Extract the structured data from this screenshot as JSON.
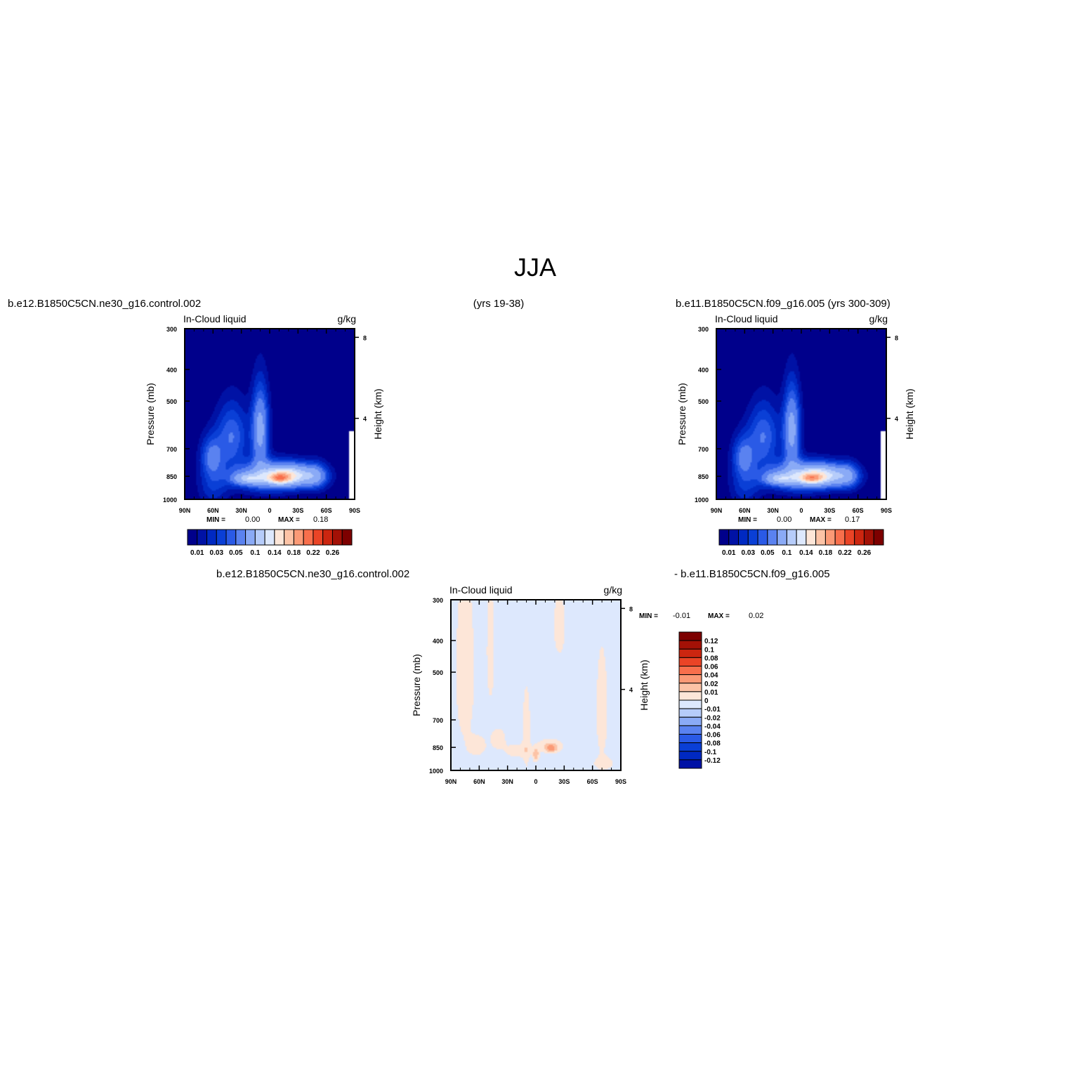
{
  "page": {
    "title": "JJA",
    "top_left_caption": "b.e12.B1850C5CN.ne30_g16.control.002",
    "top_center_caption": "(yrs 19-38)",
    "top_right_caption": "b.e11.B1850C5CN.f09_g16.005 (yrs 300-309)",
    "bottom_left_caption": "b.e12.B1850C5CN.ne30_g16.control.002",
    "bottom_right_caption": "- b.e11.B1850C5CN.f09_g16.005"
  },
  "chart_data": [
    {
      "type": "heatmap",
      "id": "panel_a",
      "variable_label": "In-Cloud liquid",
      "units": "g/kg",
      "ylabel": "Pressure (mb)",
      "y2label": "Height (km)",
      "x_ticks": [
        "90N",
        "60N",
        "30N",
        "0",
        "30S",
        "60S",
        "90S"
      ],
      "xlim": [
        90,
        -90
      ],
      "y_ticks": [
        300,
        400,
        500,
        700,
        850,
        1000
      ],
      "ylim": [
        300,
        1000
      ],
      "y_scale": "log",
      "y2_ticks": [
        8,
        4
      ],
      "min_text": "MIN =",
      "min_value": "0.00",
      "max_text": "MAX =",
      "max_value": "0.18",
      "colorbar": {
        "orientation": "horizontal",
        "colors": [
          "#00008b",
          "#0012a5",
          "#0029c2",
          "#0a3fd6",
          "#2a5ae6",
          "#5a82f0",
          "#8aaaf6",
          "#b6ccfa",
          "#dde8fd",
          "#fde6d8",
          "#fcc3a6",
          "#fb9a76",
          "#f86f4c",
          "#ea4426",
          "#cc2610",
          "#a31106",
          "#7d0000"
        ],
        "labels": [
          "0.01",
          "0.03",
          "0.05",
          "0.1",
          "0.14",
          "0.18",
          "0.22",
          "0.26"
        ]
      },
      "field": {
        "background_level": 0,
        "blobs": [
          {
            "lat": 40,
            "p": 640,
            "slat": 17,
            "sp": 150,
            "v": 0.05
          },
          {
            "lat": 62,
            "p": 740,
            "slat": 12,
            "sp": 110,
            "v": 0.05
          },
          {
            "lat": 10,
            "p": 610,
            "slat": 9,
            "sp": 175,
            "v": 0.08
          },
          {
            "lat": 2,
            "p": 850,
            "slat": 40,
            "sp": 90,
            "v": 0.07
          },
          {
            "lat": -22,
            "p": 845,
            "slat": 28,
            "sp": 65,
            "v": 0.1
          },
          {
            "lat": -10,
            "p": 862,
            "slat": 11,
            "sp": 30,
            "v": 0.07
          },
          {
            "lat": 25,
            "p": 865,
            "slat": 14,
            "sp": 35,
            "v": 0.06
          },
          {
            "lat": 60,
            "p": 930,
            "slat": 16,
            "sp": 120,
            "v": 0.025
          },
          {
            "lat": -50,
            "p": 850,
            "slat": 12,
            "sp": 80,
            "v": 0.04
          }
        ],
        "missing": [
          {
            "lat_from": -84,
            "lat_to": -90,
            "p_from": 620,
            "p_to": 1000
          }
        ]
      }
    },
    {
      "type": "heatmap",
      "id": "panel_b",
      "variable_label": "In-Cloud liquid",
      "units": "g/kg",
      "ylabel": "Pressure (mb)",
      "y2label": "Height (km)",
      "x_ticks": [
        "90N",
        "60N",
        "30N",
        "0",
        "30S",
        "60S",
        "90S"
      ],
      "xlim": [
        90,
        -90
      ],
      "y_ticks": [
        300,
        400,
        500,
        700,
        850,
        1000
      ],
      "ylim": [
        300,
        1000
      ],
      "y_scale": "log",
      "y2_ticks": [
        8,
        4
      ],
      "min_text": "MIN =",
      "min_value": "0.00",
      "max_text": "MAX =",
      "max_value": "0.17",
      "colorbar": {
        "orientation": "horizontal",
        "colors": [
          "#00008b",
          "#0012a5",
          "#0029c2",
          "#0a3fd6",
          "#2a5ae6",
          "#5a82f0",
          "#8aaaf6",
          "#b6ccfa",
          "#dde8fd",
          "#fde6d8",
          "#fcc3a6",
          "#fb9a76",
          "#f86f4c",
          "#ea4426",
          "#cc2610",
          "#a31106",
          "#7d0000"
        ],
        "labels": [
          "0.01",
          "0.03",
          "0.05",
          "0.1",
          "0.14",
          "0.18",
          "0.22",
          "0.26"
        ]
      },
      "field": {
        "background_level": 0,
        "blobs": [
          {
            "lat": 40,
            "p": 640,
            "slat": 17,
            "sp": 150,
            "v": 0.05
          },
          {
            "lat": 62,
            "p": 740,
            "slat": 12,
            "sp": 110,
            "v": 0.05
          },
          {
            "lat": 10,
            "p": 610,
            "slat": 9,
            "sp": 175,
            "v": 0.08
          },
          {
            "lat": 2,
            "p": 850,
            "slat": 40,
            "sp": 90,
            "v": 0.07
          },
          {
            "lat": -22,
            "p": 845,
            "slat": 28,
            "sp": 65,
            "v": 0.095
          },
          {
            "lat": -10,
            "p": 862,
            "slat": 11,
            "sp": 30,
            "v": 0.065
          },
          {
            "lat": 25,
            "p": 865,
            "slat": 14,
            "sp": 35,
            "v": 0.06
          },
          {
            "lat": 60,
            "p": 930,
            "slat": 16,
            "sp": 120,
            "v": 0.025
          },
          {
            "lat": -50,
            "p": 850,
            "slat": 12,
            "sp": 80,
            "v": 0.04
          }
        ],
        "missing": [
          {
            "lat_from": -84,
            "lat_to": -90,
            "p_from": 620,
            "p_to": 1000
          }
        ]
      }
    },
    {
      "type": "heatmap",
      "id": "panel_diff",
      "variable_label": "In-Cloud liquid",
      "units": "g/kg",
      "ylabel": "Pressure (mb)",
      "y2label": "Height (km)",
      "x_ticks": [
        "90N",
        "60N",
        "30N",
        "0",
        "30S",
        "60S",
        "90S"
      ],
      "xlim": [
        90,
        -90
      ],
      "y_ticks": [
        300,
        400,
        500,
        700,
        850,
        1000
      ],
      "ylim": [
        300,
        1000
      ],
      "y_scale": "log",
      "y2_ticks": [
        8,
        4
      ],
      "min_text": "MIN =",
      "min_value": "-0.01",
      "max_text": "MAX =",
      "max_value": "0.02",
      "colorbar": {
        "orientation": "vertical",
        "colors_top_to_bottom": [
          "#7d0000",
          "#a31106",
          "#cc2610",
          "#ea4426",
          "#f86f4c",
          "#fb9a76",
          "#fcc3a6",
          "#fde6d8",
          "#dde8fd",
          "#b6ccfa",
          "#8aaaf6",
          "#5a82f0",
          "#2a5ae6",
          "#0a3fd6",
          "#0029c2",
          "#0012a5"
        ],
        "labels_top_to_bottom": [
          "0.12",
          "0.1",
          "0.08",
          "0.06",
          "0.04",
          "0.02",
          "0.01",
          "0",
          "-0.01",
          "-0.02",
          "-0.04",
          "-0.06",
          "-0.08",
          "-0.1",
          "-0.12"
        ]
      },
      "field": {
        "background_level": -0.005,
        "blobs": [
          {
            "lat": 75,
            "p": 500,
            "slat": 10,
            "sp": 300,
            "v": 0.012
          },
          {
            "lat": 48,
            "p": 430,
            "slat": 4,
            "sp": 170,
            "v": 0.012
          },
          {
            "lat": 40,
            "p": 800,
            "slat": 8,
            "sp": 60,
            "v": 0.012
          },
          {
            "lat": 62,
            "p": 840,
            "slat": 9,
            "sp": 60,
            "v": 0.012
          },
          {
            "lat": 10,
            "p": 760,
            "slat": 4,
            "sp": 220,
            "v": 0.012
          },
          {
            "lat": 20,
            "p": 870,
            "slat": 12,
            "sp": 40,
            "v": 0.012
          },
          {
            "lat": -15,
            "p": 840,
            "slat": 14,
            "sp": 40,
            "v": 0.013
          },
          {
            "lat": -16,
            "p": 855,
            "slat": 6,
            "sp": 22,
            "v": 0.025
          },
          {
            "lat": 0,
            "p": 895,
            "slat": 3,
            "sp": 40,
            "v": 0.025
          },
          {
            "lat": -70,
            "p": 650,
            "slat": 6,
            "sp": 250,
            "v": 0.012
          },
          {
            "lat": -25,
            "p": 360,
            "slat": 6,
            "sp": 80,
            "v": 0.012
          },
          {
            "lat": -72,
            "p": 950,
            "slat": 10,
            "sp": 40,
            "v": 0.012
          }
        ],
        "missing": []
      }
    }
  ]
}
